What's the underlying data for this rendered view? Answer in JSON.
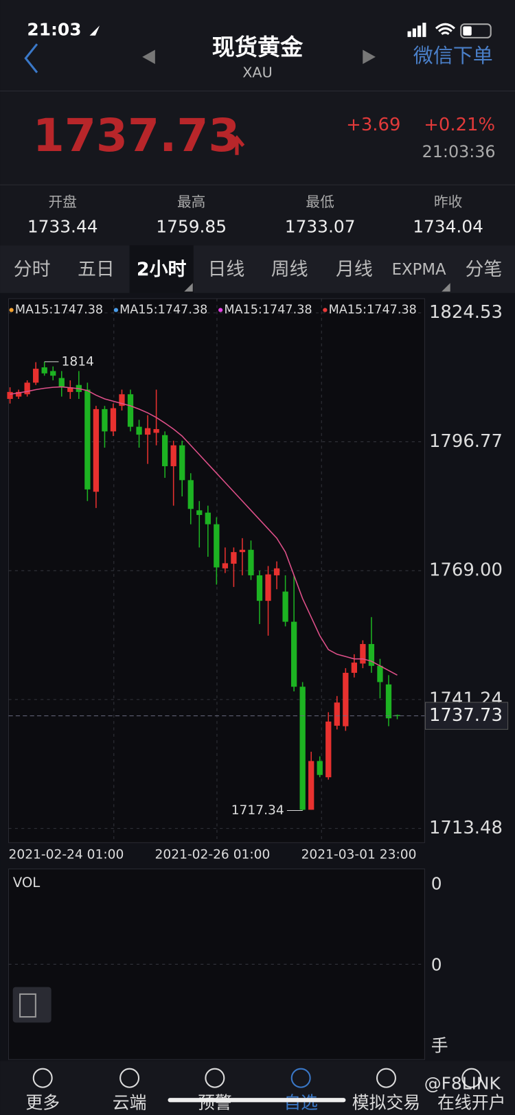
{
  "status_bar": {
    "time": "21:03"
  },
  "header": {
    "title": "现货黄金",
    "subtitle": "XAU",
    "action": "微信下单"
  },
  "quote": {
    "price": "1737.73",
    "change": "+3.69",
    "change_pct": "+0.21%",
    "time": "21:03:36"
  },
  "stats": [
    {
      "label": "开盘",
      "value": "1733.44"
    },
    {
      "label": "最高",
      "value": "1759.85"
    },
    {
      "label": "最低",
      "value": "1733.07"
    },
    {
      "label": "昨收",
      "value": "1734.04"
    }
  ],
  "tabs": [
    "分时",
    "五日",
    "2小时",
    "日线",
    "周线",
    "月线",
    "EXPMA",
    "分笔"
  ],
  "chart_data": {
    "type": "candlestick",
    "legend": [
      {
        "label": "MA15:1747.38",
        "color": "#f0a030"
      },
      {
        "label": "MA15:1747.38",
        "color": "#4a9ce8"
      },
      {
        "label": "MA15:1747.38",
        "color": "#e040e0"
      },
      {
        "label": "MA15:1747.38",
        "color": "#e83a3a"
      }
    ],
    "categories": [
      "2021-02-24 01:00",
      null,
      null,
      null,
      null,
      null,
      null,
      null,
      null,
      null,
      null,
      null,
      null,
      null,
      null,
      null,
      null,
      "2021-02-26 01:00",
      null,
      null,
      null,
      null,
      null,
      null,
      null,
      null,
      null,
      null,
      null,
      null,
      null,
      null,
      null,
      null,
      "2021-03-01 23:00",
      null,
      null,
      null,
      null,
      null,
      null,
      null,
      null,
      null,
      null,
      null
    ],
    "open": [
      1806,
      1806.5,
      1807,
      1809.5,
      1812.8,
      1812,
      1810.5,
      1807.5,
      1809,
      1808,
      1786,
      1803.8,
      1799,
      1804.5,
      1807,
      1800,
      1798.3,
      1798.7,
      1798.2,
      1791.5,
      1796,
      1788.5,
      1782,
      1781.5,
      1779,
      1769.5,
      1770.5,
      1773,
      1773.5,
      1768,
      1762.5,
      1768,
      1764.5,
      1758,
      1744,
      1717.5,
      1728,
      1724.5,
      1735.6,
      1735.5,
      1747,
      1749,
      1753.2,
      1748.5,
      1744.5,
      1737.9
    ],
    "high": [
      1808.5,
      1808,
      1810,
      1813.91,
      1814,
      1813,
      1812,
      1810,
      1812,
      1809.5,
      1804.5,
      1804.5,
      1805,
      1808,
      1808,
      1801.5,
      1802.5,
      1808,
      1799,
      1797,
      1797,
      1790,
      1784,
      1783,
      1780.5,
      1774,
      1774,
      1776,
      1775.5,
      1769,
      1770,
      1771,
      1768,
      1768,
      1745,
      1730,
      1729,
      1738.5,
      1742,
      1748,
      1751,
      1754,
      1759,
      1750,
      1746.5,
      1738
    ],
    "low": [
      1805,
      1806,
      1806.5,
      1809,
      1811,
      1810,
      1806.5,
      1806,
      1806,
      1784,
      1782.5,
      1795.5,
      1798,
      1803.5,
      1799,
      1795.5,
      1792,
      1796,
      1789,
      1783,
      1785,
      1779,
      1774,
      1772,
      1766,
      1768.5,
      1765.5,
      1768,
      1767,
      1757.5,
      1755,
      1765,
      1757,
      1743,
      1717.34,
      1717.5,
      1724.5,
      1724,
      1734.8,
      1734.5,
      1746,
      1748,
      1747,
      1741.5,
      1735.5,
      1737
    ],
    "close": [
      1807.5,
      1807.5,
      1809.5,
      1812.5,
      1811.5,
      1811,
      1808.5,
      1808.5,
      1807.5,
      1786.5,
      1803.8,
      1799,
      1804,
      1807,
      1800,
      1798.3,
      1799.7,
      1799.5,
      1791.5,
      1796,
      1788.5,
      1782.3,
      1781,
      1779,
      1769.7,
      1770.6,
      1773,
      1773.5,
      1768,
      1762.5,
      1768.2,
      1769.5,
      1758,
      1744,
      1717.5,
      1728,
      1725,
      1736.5,
      1740.6,
      1747,
      1749.2,
      1753.2,
      1748.5,
      1745,
      1737.2,
      1737.73
    ],
    "up_color": "#e8312f",
    "down_color": "#1db322",
    "ma": {
      "color": "#e0508a",
      "values": [
        1807,
        1807.3,
        1807.6,
        1808,
        1808.3,
        1808.5,
        1808.6,
        1808.4,
        1808.2,
        1807.8,
        1806.8,
        1806,
        1805.5,
        1805,
        1804.5,
        1803.8,
        1803,
        1802,
        1800.8,
        1799.5,
        1798,
        1796,
        1794,
        1792,
        1790,
        1788,
        1786,
        1784,
        1782,
        1780,
        1778,
        1776,
        1773,
        1768,
        1763,
        1759,
        1755,
        1752,
        1751,
        1750.5,
        1750,
        1750,
        1749.5,
        1748.5,
        1747.5,
        1746.5
      ]
    },
    "ylim": [
      1713.48,
      1824.53
    ],
    "yticks": [
      1824.53,
      1796.77,
      {
        "value": 1769,
        "label": "1769.00"
      },
      1741.24,
      1713.48
    ],
    "grid": true
  },
  "volume": {
    "label": "VOL",
    "yticks": [
      0,
      0
    ],
    "unit": "手"
  },
  "nav": [
    "更多",
    "云端",
    "预警",
    "自选",
    "模拟交易",
    "在线开户"
  ],
  "watermark": "@F8LINK"
}
